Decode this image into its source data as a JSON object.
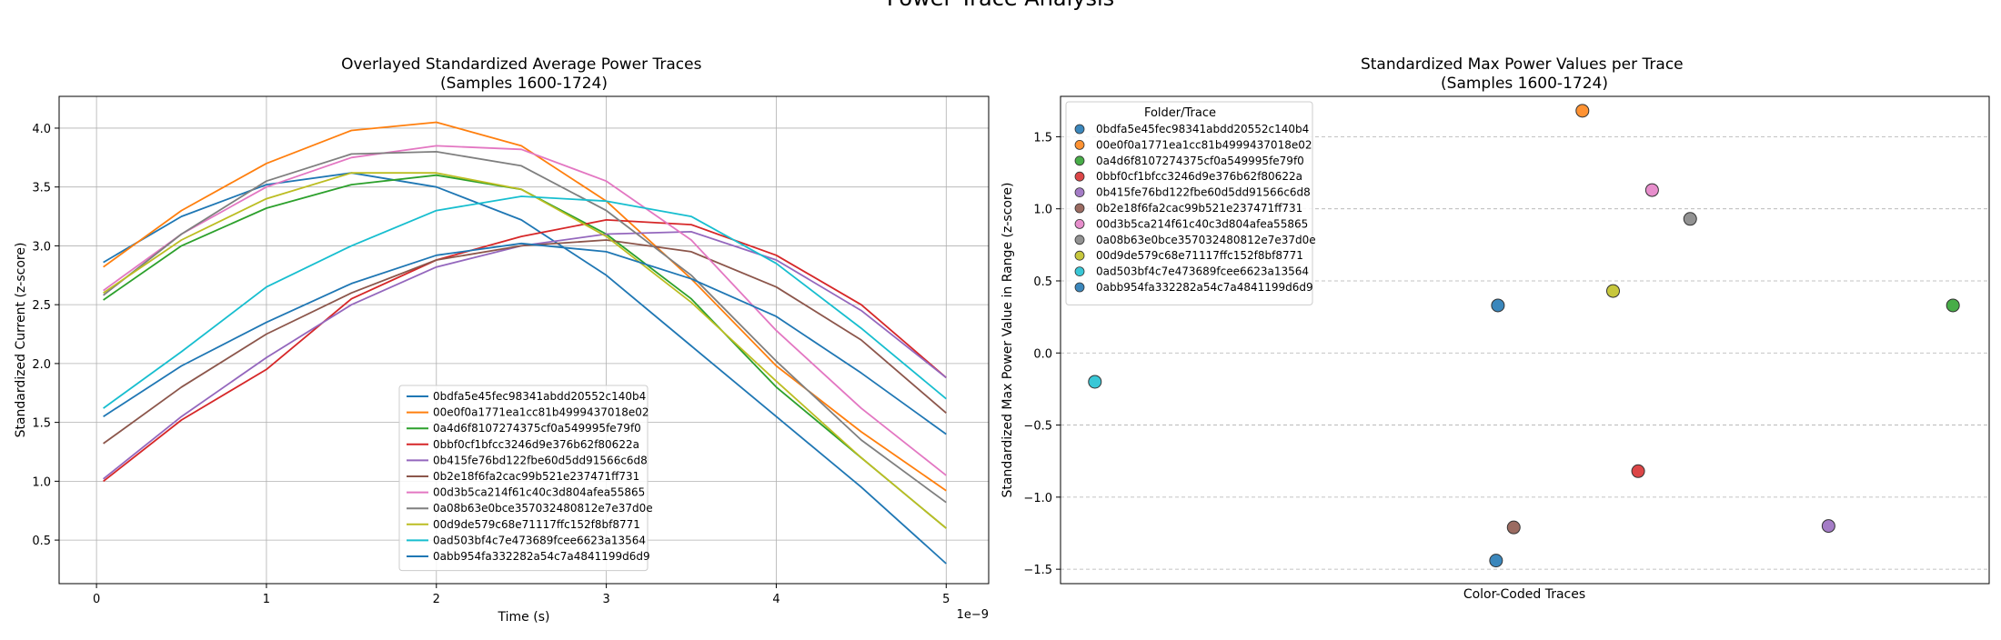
{
  "figure": {
    "suptitle": "Power Trace Analysis"
  },
  "series_names": [
    "0bdfa5e45fec98341abdd20552c140b4",
    "00e0f0a1771ea1cc81b4999437018e02",
    "0a4d6f8107274375cf0a549995fe79f0",
    "0bbf0cf1bfcc3246d9e376b62f80622a",
    "0b415fe76bd122fbe60d5dd91566c6d8",
    "0b2e18f6fa2cac99b521e237471ff731",
    "00d3b5ca214f61c40c3d804afea55865",
    "0a08b63e0bce357032480812e7e37d0e",
    "00d9de579c68e71117ffc152f8bf8771",
    "0ad503bf4c7e473689fcee6623a13564",
    "0abb954fa332282a54c7a4841199d6d9"
  ],
  "colors": {
    "line": [
      "#1f77b4",
      "#ff7f0e",
      "#2ca02c",
      "#d62728",
      "#9467bd",
      "#8c564b",
      "#e377c2",
      "#7f7f7f",
      "#bcbd22",
      "#17becf",
      "#1f77b4"
    ],
    "scatter": [
      "#3b87bc",
      "#ff9232",
      "#48ad48",
      "#dc4647",
      "#a47cc6",
      "#9b6b61",
      "#e78ecc",
      "#929292",
      "#c7c73d",
      "#39c7d6",
      "#3b87bc"
    ]
  },
  "chart_data": [
    {
      "type": "line",
      "title": "Overlayed Standardized Average Power Traces\n(Samples 1600-1724)",
      "xlabel": "Time (s)",
      "ylabel": "Standardized Current (z-score)",
      "x_scale_label": "1e−9",
      "xlim": [
        -0.22,
        5.25
      ],
      "ylim": [
        0.13,
        4.27
      ],
      "xticks": [
        0,
        1,
        2,
        3,
        4,
        5
      ],
      "yticks": [
        0.5,
        1.0,
        1.5,
        2.0,
        2.5,
        3.0,
        3.5,
        4.0
      ],
      "xtick_labels": [
        "0",
        "1",
        "2",
        "3",
        "4",
        "5"
      ],
      "ytick_labels": [
        "0.5",
        "1.0",
        "1.5",
        "2.0",
        "2.5",
        "3.0",
        "3.5",
        "4.0"
      ],
      "grid": true,
      "legend_position": "lower center",
      "x": [
        0.04,
        0.5,
        1.0,
        1.5,
        2.0,
        2.5,
        3.0,
        3.5,
        4.0,
        4.5,
        5.0
      ],
      "series": [
        {
          "name": "0bdfa5e45fec98341abdd20552c140b4",
          "values": [
            2.86,
            3.25,
            3.52,
            3.62,
            3.5,
            3.22,
            2.75,
            2.15,
            1.55,
            0.95,
            0.3
          ]
        },
        {
          "name": "00e0f0a1771ea1cc81b4999437018e02",
          "values": [
            2.82,
            3.3,
            3.7,
            3.98,
            4.05,
            3.85,
            3.38,
            2.72,
            1.98,
            1.42,
            0.92
          ]
        },
        {
          "name": "0a4d6f8107274375cf0a549995fe79f0",
          "values": [
            2.54,
            3.0,
            3.32,
            3.52,
            3.6,
            3.48,
            3.1,
            2.55,
            1.8,
            1.2,
            0.6
          ]
        },
        {
          "name": "0bbf0cf1bfcc3246d9e376b62f80622a",
          "values": [
            1.0,
            1.52,
            1.95,
            2.55,
            2.88,
            3.08,
            3.22,
            3.18,
            2.92,
            2.5,
            1.88
          ]
        },
        {
          "name": "0b415fe76bd122fbe60d5dd91566c6d8",
          "values": [
            1.02,
            1.55,
            2.05,
            2.5,
            2.82,
            3.0,
            3.1,
            3.12,
            2.88,
            2.45,
            1.88
          ]
        },
        {
          "name": "0b2e18f6fa2cac99b521e237471ff731",
          "values": [
            1.32,
            1.8,
            2.25,
            2.6,
            2.88,
            3.0,
            3.05,
            2.95,
            2.65,
            2.2,
            1.58
          ]
        },
        {
          "name": "00d3b5ca214f61c40c3d804afea55865",
          "values": [
            2.62,
            3.1,
            3.5,
            3.75,
            3.85,
            3.82,
            3.55,
            3.05,
            2.28,
            1.62,
            1.05
          ]
        },
        {
          "name": "0a08b63e0bce357032480812e7e37d0e",
          "values": [
            2.58,
            3.1,
            3.55,
            3.78,
            3.8,
            3.68,
            3.3,
            2.75,
            2.02,
            1.35,
            0.82
          ]
        },
        {
          "name": "00d9de579c68e71117ffc152f8bf8771",
          "values": [
            2.6,
            3.05,
            3.4,
            3.62,
            3.62,
            3.48,
            3.08,
            2.52,
            1.85,
            1.2,
            0.6
          ]
        },
        {
          "name": "0ad503bf4c7e473689fcee6623a13564",
          "values": [
            1.62,
            2.1,
            2.65,
            3.0,
            3.3,
            3.42,
            3.38,
            3.25,
            2.85,
            2.3,
            1.7
          ]
        },
        {
          "name": "0abb954fa332282a54c7a4841199d6d9",
          "values": [
            1.55,
            1.98,
            2.35,
            2.68,
            2.92,
            3.02,
            2.95,
            2.72,
            2.4,
            1.92,
            1.4
          ]
        }
      ]
    },
    {
      "type": "scatter",
      "title": "Standardized Max Power Values per Trace\n(Samples 1600-1724)",
      "xlabel": "Color-Coded Traces",
      "ylabel": "Standardized Max Power Value in Range (z-score)",
      "ylim": [
        -1.6,
        1.78
      ],
      "yticks": [
        -1.5,
        -1.0,
        -0.5,
        0.0,
        0.5,
        1.0,
        1.5
      ],
      "ytick_labels": [
        "−1.5",
        "−1.0",
        "−0.5",
        "0.0",
        "0.5",
        "1.0",
        "1.5"
      ],
      "xlim": [
        0,
        1
      ],
      "grid": "horizontal dashed",
      "legend_title": "Folder/Trace",
      "legend_position": "upper left",
      "points": [
        {
          "name": "0bdfa5e45fec98341abdd20552c140b4",
          "x": 0.471,
          "y": 0.33
        },
        {
          "name": "00e0f0a1771ea1cc81b4999437018e02",
          "x": 0.562,
          "y": 1.68
        },
        {
          "name": "0a4d6f8107274375cf0a549995fe79f0",
          "x": 0.961,
          "y": 0.33
        },
        {
          "name": "0bbf0cf1bfcc3246d9e376b62f80622a",
          "x": 0.622,
          "y": -0.82
        },
        {
          "name": "0b415fe76bd122fbe60d5dd91566c6d8",
          "x": 0.827,
          "y": -1.2
        },
        {
          "name": "0b2e18f6fa2cac99b521e237471ff731",
          "x": 0.488,
          "y": -1.21
        },
        {
          "name": "00d3b5ca214f61c40c3d804afea55865",
          "x": 0.637,
          "y": 1.13
        },
        {
          "name": "0a08b63e0bce357032480812e7e37d0e",
          "x": 0.678,
          "y": 0.93
        },
        {
          "name": "00d9de579c68e71117ffc152f8bf8771",
          "x": 0.595,
          "y": 0.43
        },
        {
          "name": "0ad503bf4c7e473689fcee6623a13564",
          "x": 0.037,
          "y": -0.2
        },
        {
          "name": "0abb954fa332282a54c7a4841199d6d9",
          "x": 0.469,
          "y": -1.44
        }
      ]
    }
  ]
}
